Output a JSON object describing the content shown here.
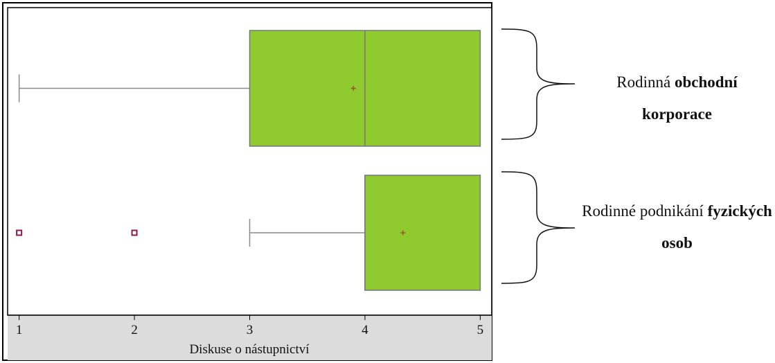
{
  "chart_data": {
    "type": "box",
    "orientation": "horizontal",
    "xlabel": "Diskuse o nástupnictví",
    "xticks": [
      1,
      2,
      3,
      4,
      5
    ],
    "xlim": [
      0.9,
      5.1
    ],
    "grid": false,
    "colors": {
      "box_fill": "#8fcb2f",
      "box_stroke": "#777777",
      "whisker": "#8a8a8a",
      "mean_marker": "#a0522d",
      "outlier": "#8b1a4a",
      "axis_band": "#dcdcdc"
    },
    "groups": [
      {
        "label_normal": "Rodinná ",
        "label_bold": "obchodní korporace",
        "min": 1,
        "q1": 3,
        "median": 4,
        "q3": 5,
        "max": 5,
        "mean": 3.9,
        "outliers": []
      },
      {
        "label_normal": "Rodinné podnikání ",
        "label_bold": "fyzických osob",
        "min": 3,
        "q1": 4,
        "median": 4,
        "q3": 5,
        "max": 5,
        "mean": 4.33,
        "outliers": [
          1,
          2
        ]
      }
    ]
  }
}
